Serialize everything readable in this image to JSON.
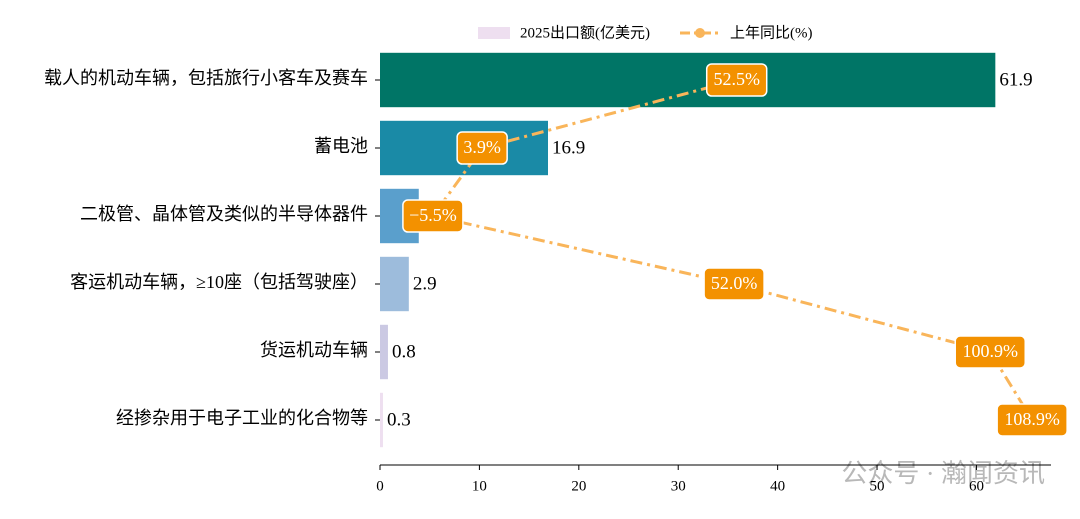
{
  "chart_data": {
    "type": "bar-line",
    "categories": [
      "载人的机动车辆，包括旅行小客车及赛车",
      "蓄电池",
      "二极管、晶体管及类似的半导体器件",
      "客运机动车辆，≥10座（包括驾驶座）",
      "货运机动车辆",
      "经掺杂用于电子工业的化合物等"
    ],
    "series": [
      {
        "name": "2025出口额(亿美元)",
        "type": "bar",
        "values": [
          61.9,
          16.9,
          3.9,
          2.9,
          0.8,
          0.3
        ],
        "colors": [
          "#007566",
          "#1a8aa6",
          "#5a9fcc",
          "#9dbcdc",
          "#cbc9e3",
          "#eedff0"
        ],
        "color": "#eedff0"
      },
      {
        "name": "上年同比(%)",
        "type": "line",
        "axis": "x2",
        "values": [
          52.5,
          3.9,
          -5.5,
          52.0,
          100.9,
          108.9
        ],
        "value_labels": [
          "52.5%",
          "3.9%",
          "−5.5%",
          "52.0%",
          "100.9%",
          "108.9%"
        ],
        "color": "#f9b55a",
        "label_color": "#f39100"
      }
    ],
    "xlim": [
      0,
      67.5
    ],
    "xticks": [
      0,
      10,
      20,
      30,
      40,
      50,
      60
    ],
    "x2lim": [
      -15.6,
      112.5
    ],
    "watermark": "公众号 · 瀚闻资讯"
  }
}
